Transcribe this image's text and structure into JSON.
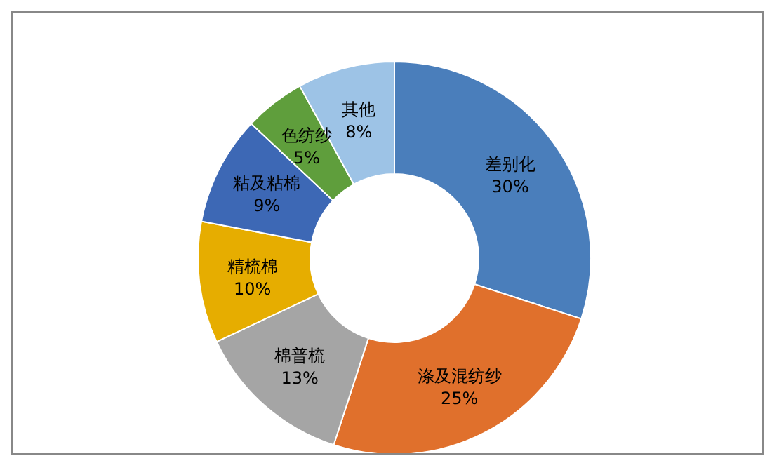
{
  "chart_data": {
    "type": "donut",
    "categories": [
      "差别化",
      "涤及混纺纱",
      "棉普梳",
      "精梳棉",
      "粘及粘棉",
      "色纺纱",
      "其他"
    ],
    "values": [
      30,
      25,
      13,
      10,
      9,
      5,
      8
    ],
    "value_labels": [
      "30%",
      "25%",
      "13%",
      "10%",
      "9%",
      "5%",
      "8%"
    ],
    "colors": [
      "#4a7ebb",
      "#e0702c",
      "#a5a5a5",
      "#e6ad00",
      "#3d68b5",
      "#5f9e3c",
      "#9dc3e6"
    ]
  }
}
